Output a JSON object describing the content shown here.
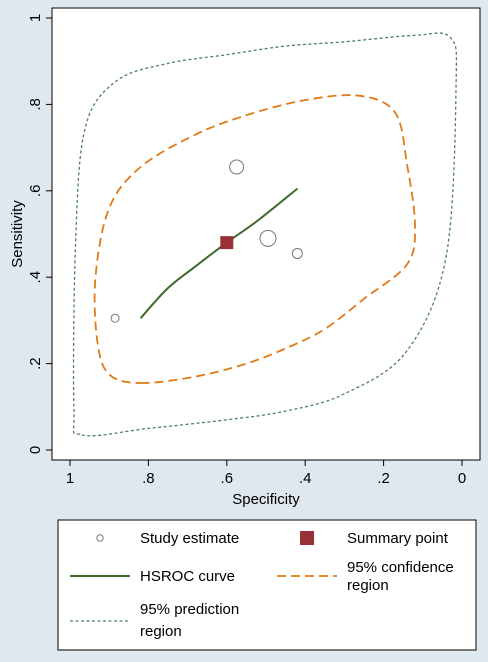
{
  "chart_data": {
    "type": "scatter",
    "xlabel": "Specificity",
    "ylabel": "Sensitivity",
    "x_reversed": true,
    "xlim": [
      0,
      1
    ],
    "ylim": [
      0,
      1
    ],
    "x_ticks": [
      1,
      0.8,
      0.6,
      0.4,
      0.2,
      0
    ],
    "x_tick_labels": [
      "1",
      ".8",
      ".6",
      ".4",
      ".2",
      "0"
    ],
    "y_ticks": [
      0,
      0.2,
      0.4,
      0.6,
      0.8,
      1
    ],
    "y_tick_labels": [
      "0",
      ".2",
      ".4",
      ".6",
      ".8",
      "1"
    ],
    "grid": false,
    "legend_position": "bottom",
    "study_estimates": [
      {
        "specificity": 0.885,
        "sensitivity": 0.305,
        "size": 4
      },
      {
        "specificity": 0.575,
        "sensitivity": 0.655,
        "size": 7
      },
      {
        "specificity": 0.495,
        "sensitivity": 0.49,
        "size": 8
      },
      {
        "specificity": 0.42,
        "sensitivity": 0.455,
        "size": 5
      }
    ],
    "summary_point": {
      "specificity": 0.6,
      "sensitivity": 0.48
    },
    "hsroc_curve": [
      [
        0.82,
        0.305
      ],
      [
        0.75,
        0.375
      ],
      [
        0.68,
        0.425
      ],
      [
        0.6,
        0.48
      ],
      [
        0.52,
        0.532
      ],
      [
        0.42,
        0.605
      ]
    ],
    "confidence_region": [
      [
        0.82,
        0.155
      ],
      [
        0.68,
        0.17
      ],
      [
        0.55,
        0.2
      ],
      [
        0.45,
        0.235
      ],
      [
        0.35,
        0.28
      ],
      [
        0.25,
        0.35
      ],
      [
        0.14,
        0.43
      ],
      [
        0.12,
        0.52
      ],
      [
        0.14,
        0.66
      ],
      [
        0.17,
        0.78
      ],
      [
        0.26,
        0.82
      ],
      [
        0.4,
        0.81
      ],
      [
        0.55,
        0.775
      ],
      [
        0.68,
        0.73
      ],
      [
        0.82,
        0.655
      ],
      [
        0.9,
        0.56
      ],
      [
        0.935,
        0.4
      ],
      [
        0.93,
        0.25
      ],
      [
        0.9,
        0.175
      ],
      [
        0.82,
        0.155
      ]
    ],
    "prediction_region": [
      [
        0.97,
        0.035
      ],
      [
        0.8,
        0.05
      ],
      [
        0.6,
        0.07
      ],
      [
        0.45,
        0.09
      ],
      [
        0.3,
        0.13
      ],
      [
        0.14,
        0.23
      ],
      [
        0.04,
        0.45
      ],
      [
        0.015,
        0.85
      ],
      [
        0.03,
        0.955
      ],
      [
        0.12,
        0.96
      ],
      [
        0.3,
        0.945
      ],
      [
        0.45,
        0.935
      ],
      [
        0.6,
        0.915
      ],
      [
        0.75,
        0.895
      ],
      [
        0.88,
        0.855
      ],
      [
        0.96,
        0.75
      ],
      [
        0.985,
        0.5
      ],
      [
        0.99,
        0.1
      ],
      [
        0.97,
        0.035
      ]
    ],
    "colors": {
      "hsroc_curve": "#3f6b2c",
      "confidence_region": "#e07a18",
      "prediction_region": "#4e7f6e",
      "summary_point": "#9a3036",
      "study_estimate": "#777777"
    }
  },
  "legend": {
    "items": [
      {
        "label": "Study estimate",
        "key": "study"
      },
      {
        "label": "Summary point",
        "key": "summary"
      },
      {
        "label": "HSROC curve",
        "key": "hsroc"
      },
      {
        "label_lines": [
          "95% confidence",
          "region"
        ],
        "key": "conf"
      },
      {
        "label_lines": [
          "95% prediction",
          "region"
        ],
        "key": "pred"
      }
    ]
  }
}
